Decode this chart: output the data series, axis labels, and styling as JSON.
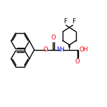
{
  "bg_color": "#ffffff",
  "bond_color": "#000000",
  "oxygen_color": "#e8000d",
  "nitrogen_color": "#2020ff",
  "line_width": 1.0,
  "fig_size": [
    1.52,
    1.52
  ],
  "dpi": 100,
  "xlim": [
    -0.05,
    1.05
  ],
  "ylim": [
    0.1,
    0.98
  ]
}
